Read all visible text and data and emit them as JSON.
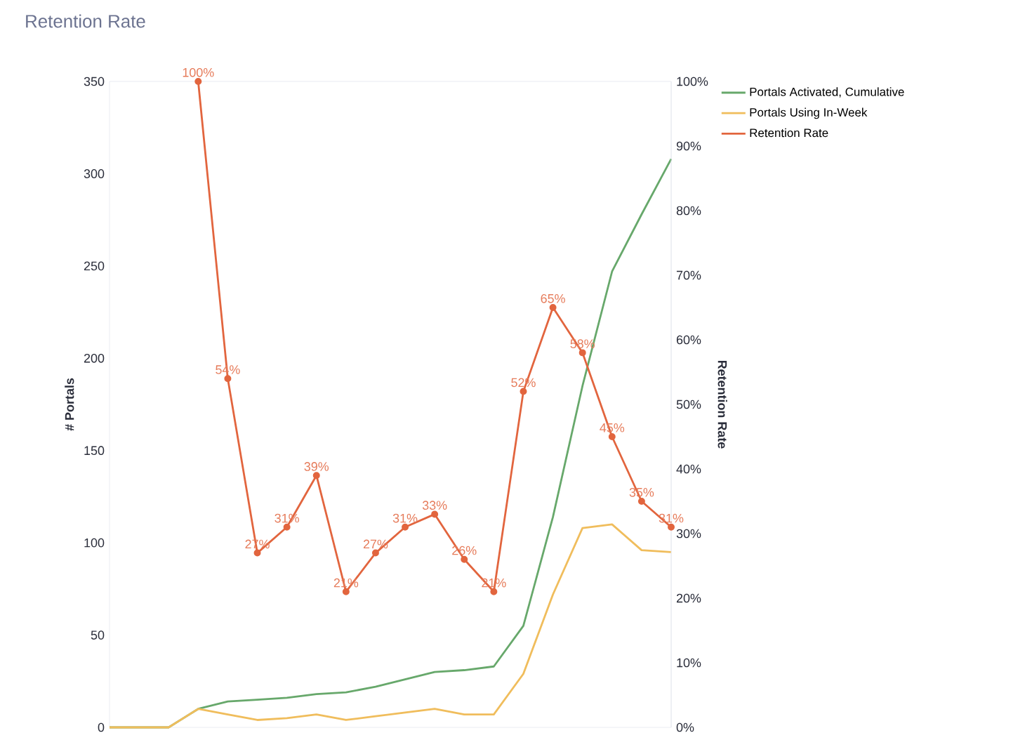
{
  "chart_data": {
    "type": "line",
    "title": "Retention Rate",
    "ylabel": "# Portals",
    "y2label": "Retention Rate",
    "categories": [
      null,
      null,
      null,
      null,
      null,
      null,
      null,
      null,
      null,
      null,
      null,
      null,
      null,
      null,
      null,
      null,
      null,
      null,
      null,
      null
    ],
    "ylim": [
      0,
      350
    ],
    "yticks": [
      0,
      50,
      100,
      150,
      200,
      250,
      300,
      350
    ],
    "y2lim": [
      0,
      100
    ],
    "y2ticks": [
      {
        "value": 0,
        "label": "0%"
      },
      {
        "value": 10,
        "label": "10%"
      },
      {
        "value": 20,
        "label": "20%"
      },
      {
        "value": 30,
        "label": "30%"
      },
      {
        "value": 40,
        "label": "40%"
      },
      {
        "value": 50,
        "label": "50%"
      },
      {
        "value": 60,
        "label": "60%"
      },
      {
        "value": 70,
        "label": "70%"
      },
      {
        "value": 80,
        "label": "80%"
      },
      {
        "value": 90,
        "label": "90%"
      },
      {
        "value": 100,
        "label": "100%"
      }
    ],
    "legend": "top right",
    "grid": false,
    "line_style": "solid",
    "series": [
      {
        "name": "Portals Activated, Cumulative",
        "color": "#67a86b",
        "marker": "none",
        "values": [
          0,
          0,
          0,
          10,
          14,
          15,
          16,
          18,
          19,
          22,
          26,
          30,
          31,
          33,
          55,
          114,
          185,
          247,
          278,
          308
        ]
      },
      {
        "name": "Portals Using In-Week",
        "color": "#f0bd5c",
        "marker": "none",
        "values": [
          0,
          0,
          0,
          10,
          7,
          4,
          5,
          7,
          4,
          6,
          8,
          10,
          7,
          7,
          29,
          72,
          108,
          110,
          96,
          95
        ]
      },
      {
        "name": "Retention Rate",
        "color": "#e2653e",
        "marker": "circle",
        "axis": "y2",
        "values": [
          null,
          null,
          null,
          100,
          54,
          27,
          31,
          39,
          21,
          27,
          31,
          33,
          26,
          21,
          52,
          65,
          58,
          45,
          35,
          31
        ],
        "value_labels": [
          null,
          null,
          null,
          "100%",
          "54%",
          "27%",
          "31%",
          "39%",
          "21%",
          "27%",
          "31%",
          "33%",
          "26%",
          "21%",
          "52%",
          "65%",
          "58%",
          "45%",
          "35%",
          "31%"
        ]
      }
    ]
  }
}
